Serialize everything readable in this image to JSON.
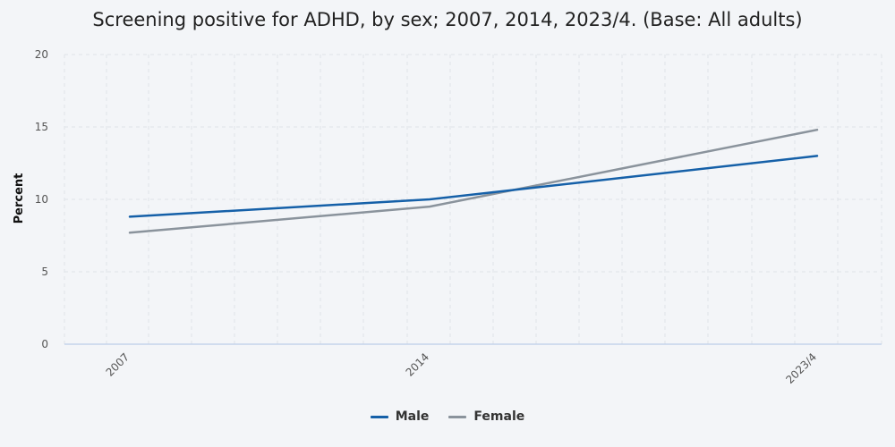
{
  "chart_data": {
    "type": "line",
    "title": "Screening positive for ADHD, by sex; 2007, 2014, 2023/4. (Base: All adults)",
    "xlabel": "",
    "ylabel": "Percent",
    "categories": [
      "2007",
      "2014",
      "2023/4"
    ],
    "series": [
      {
        "name": "Male",
        "values": [
          8.8,
          10.0,
          13.0
        ],
        "color": "#1560a8"
      },
      {
        "name": "Female",
        "values": [
          7.7,
          9.5,
          14.8
        ],
        "color": "#8a939c"
      }
    ],
    "ylim": [
      0,
      20
    ],
    "yticks": [
      "0",
      "5",
      "10",
      "15",
      "20"
    ],
    "grid": true,
    "legend_position": "bottom-center"
  }
}
